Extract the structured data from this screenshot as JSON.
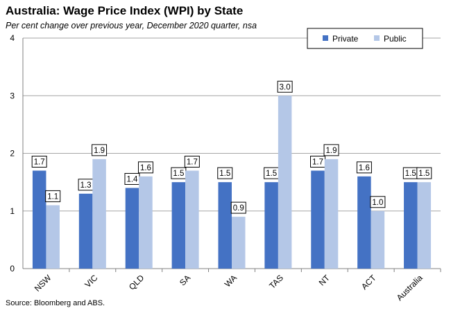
{
  "chart_data": {
    "type": "bar",
    "title": "Australia: Wage Price Index (WPI) by State",
    "subtitle": "Per cent change over previous year, December 2020  quarter, nsa",
    "source": "Source: Bloomberg and ABS.",
    "xlabel": "",
    "ylabel": "",
    "categories": [
      "NSW",
      "VIC",
      "QLD",
      "SA",
      "WA",
      "TAS",
      "NT",
      "ACT",
      "Australia"
    ],
    "series": [
      {
        "name": "Private",
        "color": "#4472C4",
        "values": [
          1.7,
          1.3,
          1.4,
          1.5,
          1.5,
          1.5,
          1.7,
          1.6,
          1.5
        ],
        "labels": [
          "1.7",
          "1.3",
          "1.4",
          "1.5",
          "1.5",
          "1.5",
          "1.7",
          "1.6",
          "1.5"
        ]
      },
      {
        "name": "Public",
        "color": "#B4C7E7",
        "values": [
          1.1,
          1.9,
          1.6,
          1.7,
          0.9,
          3.0,
          1.9,
          1.0,
          1.5
        ],
        "labels": [
          "1.1",
          "1.9",
          "1.6",
          "1.7",
          "0.9",
          "3.0",
          "1.9",
          "1.0",
          "1.5"
        ]
      }
    ],
    "ylim": [
      0,
      4
    ],
    "yticks": [
      "0",
      "1",
      "2",
      "3",
      "4"
    ],
    "grid": true,
    "legend_position": "top-right"
  }
}
